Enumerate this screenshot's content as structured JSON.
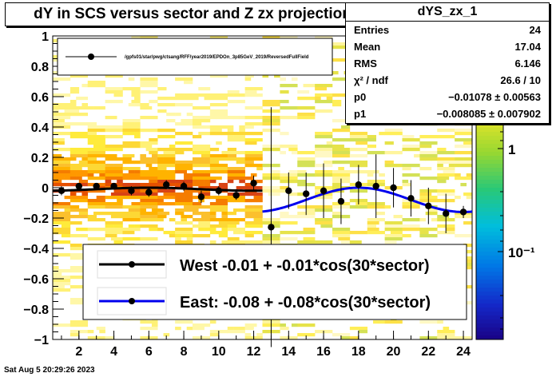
{
  "title": "dY in SCS versus sector and Z zx projection",
  "stats": {
    "name": "dYS_zx_1",
    "rows": [
      {
        "label": "Entries",
        "value": "24"
      },
      {
        "label": "Mean",
        "value": "17.04"
      },
      {
        "label": "RMS",
        "value": "6.146"
      },
      {
        "label": "χ² / ndf",
        "value": "26.6 / 10"
      },
      {
        "label": "p0",
        "value": "−0.01078 ± 0.00563"
      },
      {
        "label": "p1",
        "value": "−0.008085 ± 0.007902"
      }
    ]
  },
  "legend_top": {
    "entry": "/gpfs01/star/pwg/ctsang/RFF/year2019/EPDOn_3p85GeV_2019/ReversedFullField"
  },
  "legend_bottom": {
    "entries": [
      {
        "label": "West -0.01 + -0.01*cos(30*sector)",
        "color": "#000000"
      },
      {
        "label": "East: -0.08 + -0.08*cos(30*sector)",
        "color": "#0000ee"
      }
    ]
  },
  "colorbar": {
    "ticks": [
      "1",
      "10⁻¹"
    ]
  },
  "date": "Sat Aug  5 20:29:26 2023",
  "chart_data": {
    "type": "scatter",
    "xlim": [
      0.5,
      24.5
    ],
    "ylim": [
      -1,
      1
    ],
    "xticks": [
      "2",
      "4",
      "6",
      "8",
      "10",
      "12",
      "14",
      "16",
      "18",
      "20",
      "22",
      "24"
    ],
    "yticks": [
      "−1",
      "−0.8",
      "−0.6",
      "−0.4",
      "−0.2",
      "0",
      "0.2",
      "0.4",
      "0.6",
      "0.8",
      "1"
    ],
    "series": [
      {
        "name": "West",
        "color": "#000000",
        "x": [
          1,
          2,
          3,
          4,
          5,
          6,
          7,
          8,
          9,
          10,
          11,
          12
        ],
        "y": [
          -0.02,
          0.01,
          0.01,
          0.01,
          -0.02,
          -0.03,
          0.02,
          0.01,
          -0.06,
          -0.02,
          -0.05,
          0.03
        ],
        "yerr": [
          0.03,
          0.02,
          0.02,
          0.02,
          0.03,
          0.03,
          0.03,
          0.03,
          0.04,
          0.03,
          0.03,
          0.05
        ],
        "fit": {
          "p0": -0.01,
          "p1": -0.01,
          "xrange": [
            0.5,
            12.5
          ]
        }
      },
      {
        "name": "East",
        "color": "#0000ee",
        "x": [
          13,
          14,
          15,
          16,
          17,
          18,
          19,
          20,
          21,
          22,
          23,
          24
        ],
        "y": [
          -0.26,
          -0.02,
          -0.04,
          -0.02,
          -0.09,
          0.02,
          0.01,
          0.0,
          -0.07,
          -0.12,
          -0.17,
          -0.16
        ],
        "yerr": [
          0.79,
          0.12,
          0.14,
          0.18,
          0.15,
          0.13,
          0.21,
          0.13,
          0.12,
          0.12,
          0.13,
          0.04
        ],
        "fit": {
          "p0": -0.08,
          "p1": -0.08,
          "xrange": [
            12.5,
            24.5
          ]
        }
      }
    ]
  }
}
